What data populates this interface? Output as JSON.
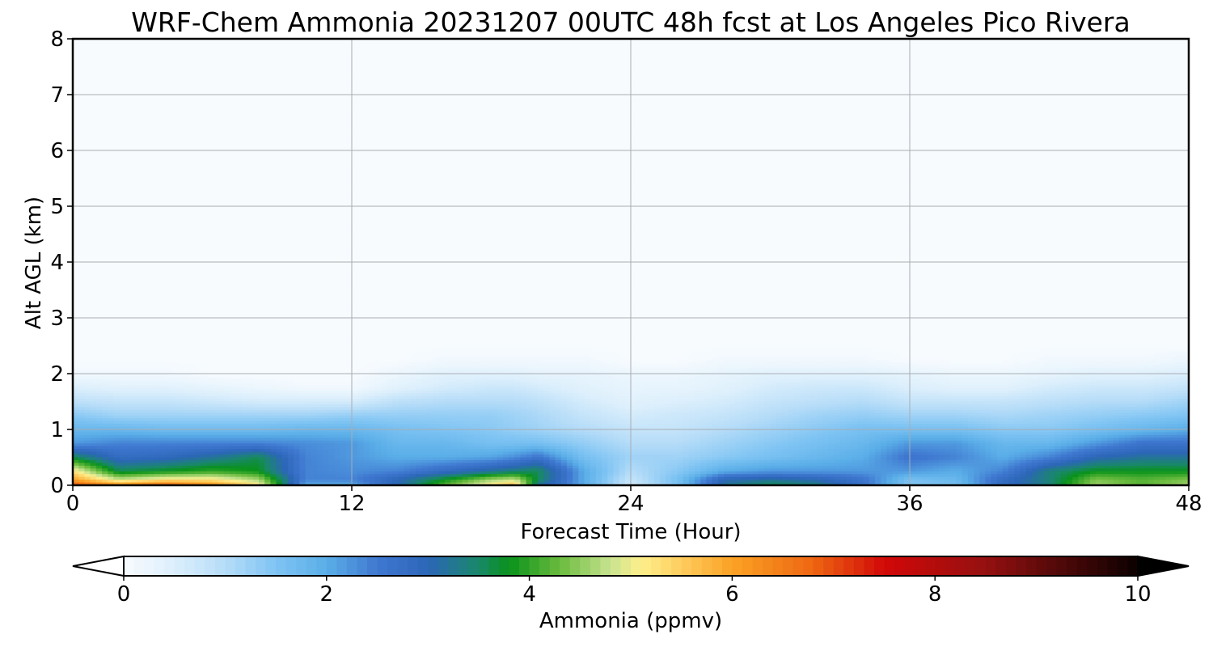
{
  "chart_data": {
    "type": "heatmap",
    "title": "WRF-Chem Ammonia  20231207 00UTC 48h fcst at Los Angeles Pico Rivera",
    "xlabel": "Forecast Time (Hour)",
    "ylabel": "Alt AGL (km)",
    "xlim": [
      0,
      48
    ],
    "ylim": [
      0,
      8
    ],
    "x_ticks": [
      "0",
      "12",
      "24",
      "36",
      "48"
    ],
    "y_ticks": [
      "0",
      "1",
      "2",
      "3",
      "4",
      "5",
      "6",
      "7",
      "8"
    ],
    "grid": true,
    "colorbar": {
      "label": "Ammonia  (ppmv)",
      "orientation": "horizontal",
      "placement": "bottom",
      "range": [
        0,
        10
      ],
      "ticks": [
        "0",
        "2",
        "4",
        "6",
        "8",
        "10"
      ],
      "extend": "both"
    },
    "x_hours": [
      0,
      2,
      4,
      6,
      8,
      10,
      12,
      14,
      16,
      18,
      19,
      20,
      22,
      24,
      26,
      28,
      30,
      32,
      34,
      36,
      38,
      40,
      42,
      44,
      46,
      48
    ],
    "y_km": [
      0,
      0.1,
      0.25,
      0.5,
      0.75,
      1.0,
      1.25,
      1.5,
      1.75,
      2.0,
      2.25,
      2.5,
      8.0
    ],
    "values_ppmv": [
      [
        7.0,
        6.2,
        6.8,
        6.2,
        5.2,
        2.0,
        2.0,
        3.0,
        4.2,
        5.2,
        5.6,
        3.2,
        2.0,
        0.6,
        1.5,
        3.2,
        3.6,
        3.4,
        2.6,
        1.4,
        1.6,
        2.8,
        3.4,
        4.6,
        4.2,
        4.6
      ],
      [
        6.0,
        4.8,
        5.2,
        5.2,
        4.6,
        2.4,
        2.4,
        3.0,
        3.8,
        4.6,
        4.8,
        3.6,
        2.0,
        0.8,
        1.6,
        3.0,
        3.2,
        3.0,
        2.6,
        1.6,
        1.8,
        2.8,
        3.4,
        4.4,
        4.2,
        4.4
      ],
      [
        5.2,
        3.6,
        3.8,
        4.0,
        3.8,
        2.4,
        2.3,
        2.4,
        2.8,
        3.2,
        3.4,
        3.6,
        2.0,
        1.0,
        1.4,
        2.0,
        2.2,
        2.2,
        2.2,
        2.2,
        2.0,
        2.4,
        3.4,
        3.8,
        3.8,
        3.8
      ],
      [
        3.6,
        2.8,
        2.9,
        3.2,
        3.6,
        2.4,
        2.2,
        2.0,
        2.0,
        2.1,
        2.3,
        2.6,
        1.6,
        1.2,
        1.2,
        1.4,
        1.6,
        1.8,
        2.0,
        2.6,
        2.4,
        2.0,
        2.4,
        3.0,
        3.2,
        3.2
      ],
      [
        2.2,
        2.4,
        2.4,
        2.4,
        2.4,
        2.3,
        2.2,
        1.8,
        1.8,
        1.6,
        1.6,
        1.6,
        1.3,
        1.0,
        1.0,
        1.2,
        1.4,
        1.6,
        1.8,
        2.2,
        2.2,
        1.8,
        1.8,
        2.2,
        2.6,
        2.6
      ],
      [
        1.8,
        1.8,
        1.7,
        1.7,
        1.7,
        1.8,
        1.8,
        1.6,
        1.5,
        1.4,
        1.3,
        1.2,
        1.0,
        0.8,
        0.8,
        1.0,
        1.2,
        1.4,
        1.6,
        1.6,
        1.6,
        1.4,
        1.4,
        1.6,
        1.8,
        2.0
      ],
      [
        1.4,
        1.2,
        1.2,
        1.2,
        1.2,
        1.2,
        1.3,
        1.3,
        1.3,
        1.3,
        1.2,
        1.1,
        0.8,
        0.6,
        0.7,
        0.8,
        1.0,
        1.2,
        1.3,
        1.2,
        1.2,
        1.1,
        1.2,
        1.3,
        1.4,
        1.5
      ],
      [
        0.9,
        0.8,
        0.8,
        0.7,
        0.6,
        0.6,
        0.6,
        0.9,
        1.0,
        1.0,
        1.0,
        0.9,
        0.6,
        0.4,
        0.5,
        0.6,
        0.8,
        0.9,
        1.0,
        0.8,
        0.8,
        0.8,
        0.9,
        1.0,
        1.0,
        1.2
      ],
      [
        0.5,
        0.4,
        0.4,
        0.3,
        0.2,
        0.1,
        0.1,
        0.4,
        0.6,
        0.7,
        0.7,
        0.6,
        0.4,
        0.3,
        0.3,
        0.4,
        0.6,
        0.7,
        0.7,
        0.5,
        0.4,
        0.4,
        0.6,
        0.7,
        0.7,
        0.8
      ],
      [
        0.1,
        0.1,
        0.1,
        0.0,
        0.0,
        0.0,
        0.0,
        0.2,
        0.4,
        0.4,
        0.4,
        0.3,
        0.3,
        0.2,
        0.2,
        0.3,
        0.4,
        0.4,
        0.4,
        0.3,
        0.2,
        0.2,
        0.3,
        0.4,
        0.4,
        0.5
      ],
      [
        0.0,
        0.0,
        0.0,
        0.0,
        0.0,
        0.0,
        0.0,
        0.0,
        0.1,
        0.1,
        0.1,
        0.1,
        0.1,
        0.0,
        0.0,
        0.1,
        0.1,
        0.1,
        0.1,
        0.0,
        0.0,
        0.0,
        0.1,
        0.1,
        0.1,
        0.2
      ],
      [
        0.0,
        0.0,
        0.0,
        0.0,
        0.0,
        0.0,
        0.0,
        0.0,
        0.0,
        0.0,
        0.0,
        0.0,
        0.0,
        0.0,
        0.0,
        0.0,
        0.0,
        0.0,
        0.0,
        0.0,
        0.0,
        0.0,
        0.0,
        0.0,
        0.0,
        0.0
      ],
      [
        0.0,
        0.0,
        0.0,
        0.0,
        0.0,
        0.0,
        0.0,
        0.0,
        0.0,
        0.0,
        0.0,
        0.0,
        0.0,
        0.0,
        0.0,
        0.0,
        0.0,
        0.0,
        0.0,
        0.0,
        0.0,
        0.0,
        0.0,
        0.0,
        0.0,
        0.0
      ]
    ],
    "colormap": [
      [
        0.0,
        "#f7fbfe"
      ],
      [
        0.5,
        "#dceffc"
      ],
      [
        1.0,
        "#b5dcf8"
      ],
      [
        1.5,
        "#7fc4f3"
      ],
      [
        2.0,
        "#5aaee8"
      ],
      [
        2.5,
        "#3f78d0"
      ],
      [
        3.0,
        "#2c66b8"
      ],
      [
        3.5,
        "#19886a"
      ],
      [
        3.8,
        "#09921a"
      ],
      [
        4.3,
        "#6abb3e"
      ],
      [
        4.8,
        "#c8e390"
      ],
      [
        5.1,
        "#ffef8c"
      ],
      [
        6.0,
        "#fba225"
      ],
      [
        6.8,
        "#ee6612"
      ],
      [
        7.5,
        "#d20808"
      ],
      [
        8.5,
        "#951010"
      ],
      [
        9.3,
        "#4a0808"
      ],
      [
        10.0,
        "#0c0000"
      ]
    ]
  }
}
